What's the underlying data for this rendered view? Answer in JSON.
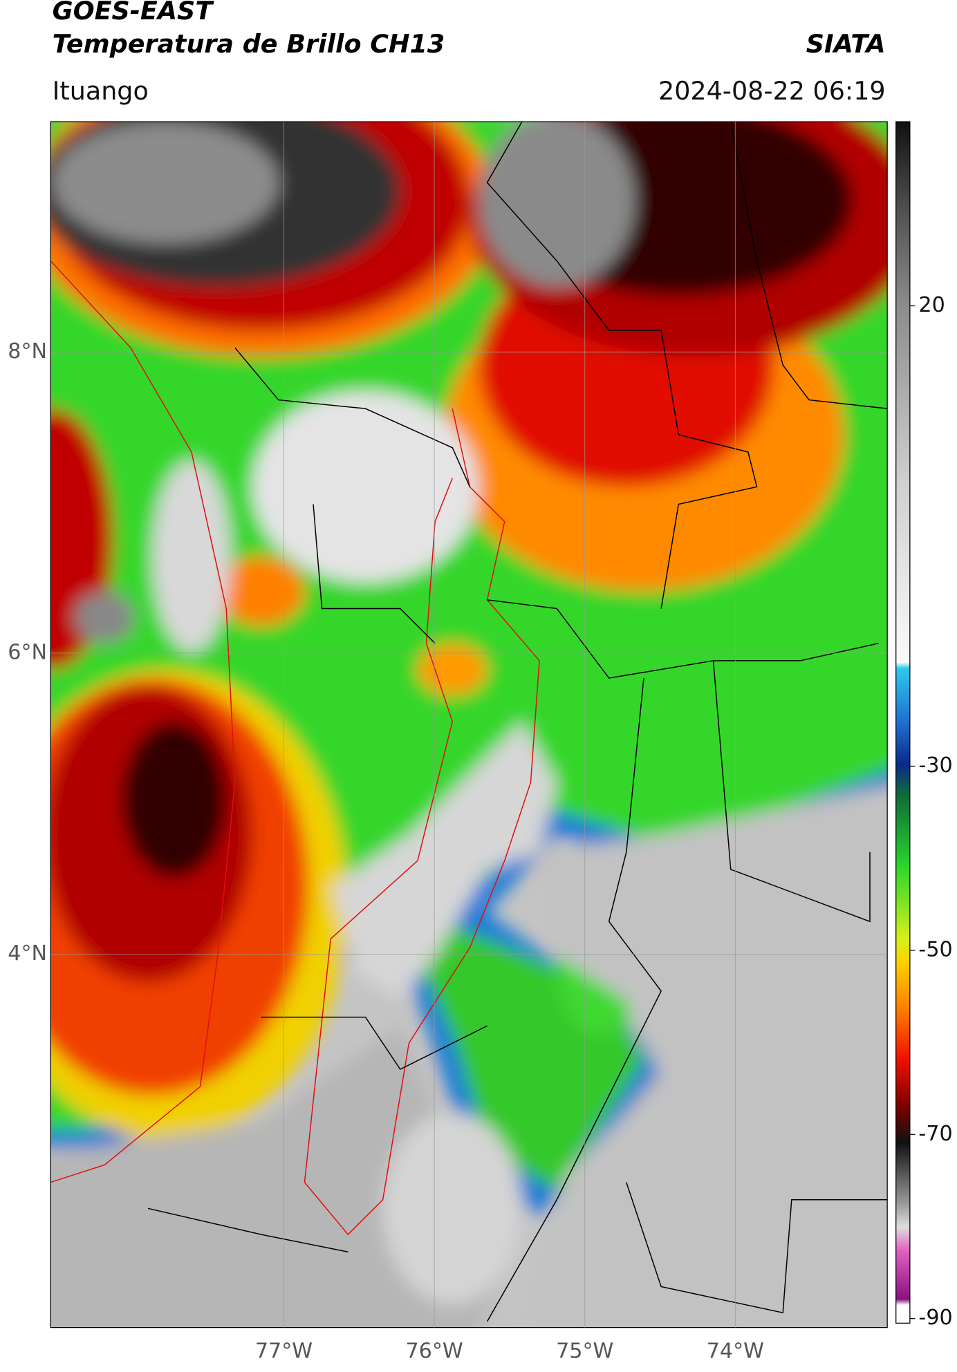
{
  "header": {
    "satellite": "GOES-EAST",
    "product": "Temperatura de Brillo CH13",
    "organization": "SIATA",
    "location": "Ituango",
    "datetime": "2024-08-22 06:19"
  },
  "map": {
    "lon_lim": [
      -78.55,
      -72.99
    ],
    "lat_lim": [
      1.52,
      9.53
    ],
    "lat_ticks": [
      {
        "value": 8,
        "label": "8°N"
      },
      {
        "value": 6,
        "label": "6°N"
      },
      {
        "value": 4,
        "label": "4°N"
      }
    ],
    "lon_ticks": [
      {
        "value": -77,
        "label": "77°W"
      },
      {
        "value": -76,
        "label": "76°W"
      },
      {
        "value": -75,
        "label": "75°W"
      },
      {
        "value": -74,
        "label": "74°W"
      }
    ]
  },
  "colorbar": {
    "lim": [
      -90.5,
      40
    ],
    "ticks": [
      20,
      -30,
      -50,
      -70,
      -90
    ]
  }
}
